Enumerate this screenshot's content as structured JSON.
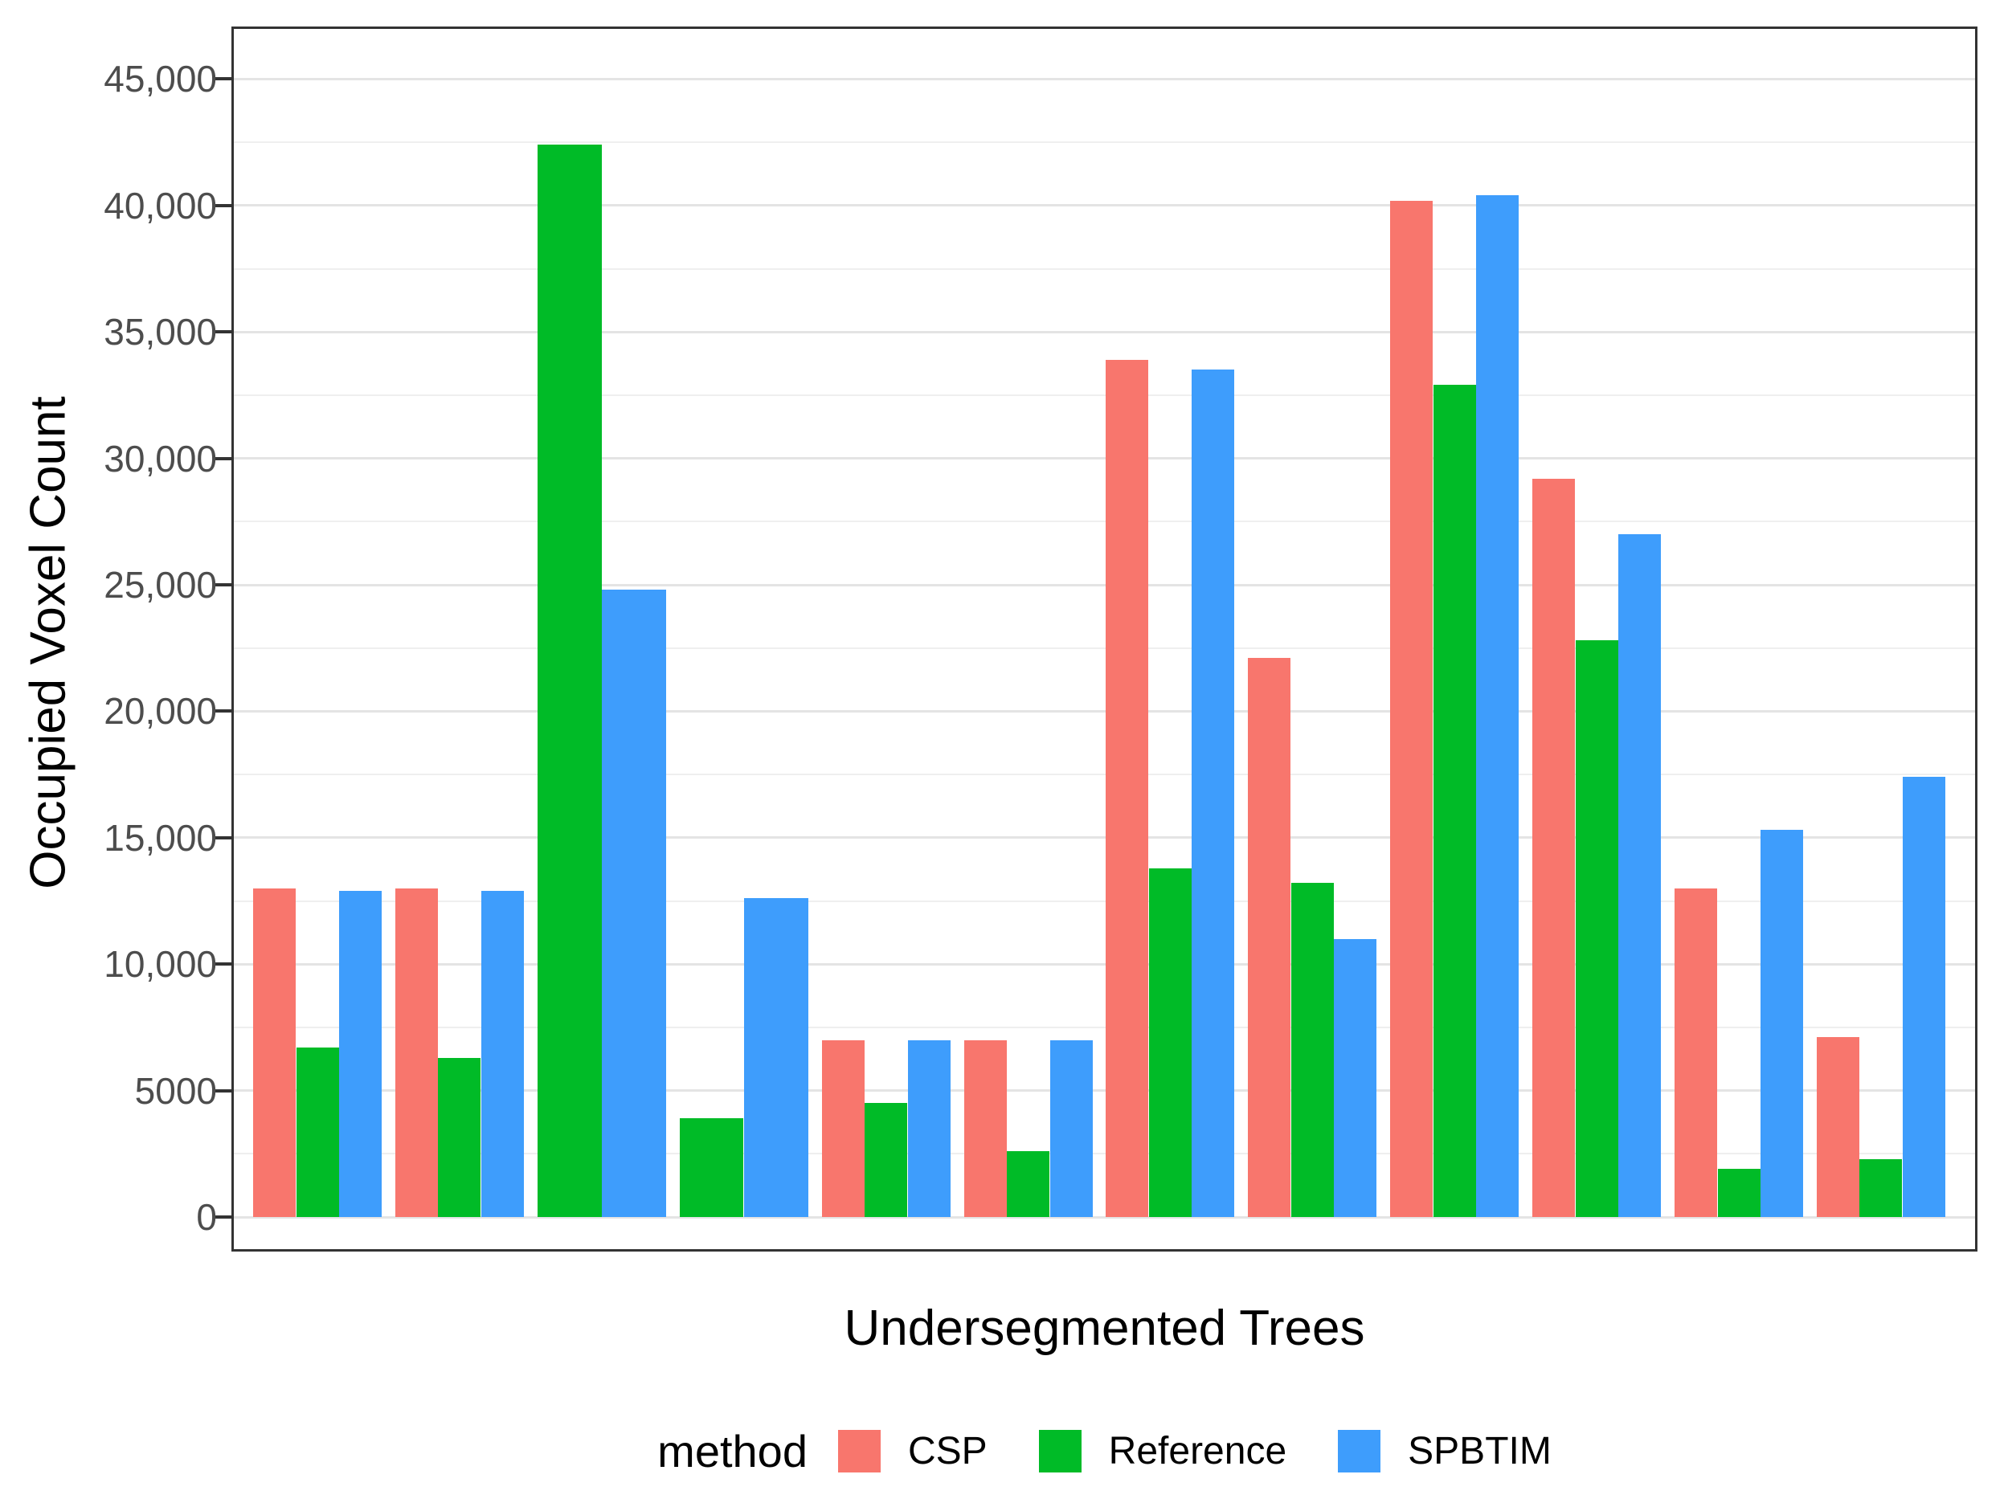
{
  "chart_data": {
    "type": "bar",
    "title": "",
    "xlabel": "Undersegmented Trees",
    "ylabel": "Occupied Voxel Count",
    "categories": [
      1,
      2,
      3,
      4,
      5,
      6,
      7,
      8,
      9,
      10,
      11,
      12
    ],
    "x_tick_labels_shown": false,
    "series": [
      {
        "name": "CSP",
        "color": "#F8766D",
        "values": [
          13000,
          13000,
          null,
          null,
          7000,
          7000,
          33900,
          22100,
          40200,
          29200,
          13000,
          7100
        ]
      },
      {
        "name": "Reference",
        "color": "#00BB27",
        "values": [
          6700,
          6300,
          42400,
          3900,
          4500,
          2600,
          13800,
          13200,
          32900,
          22800,
          1900,
          2300
        ]
      },
      {
        "name": "SPBTIM",
        "color": "#3E9DFC",
        "values": [
          12900,
          12900,
          24800,
          12600,
          7000,
          7000,
          33500,
          11000,
          40400,
          27000,
          15300,
          17400
        ]
      }
    ],
    "y_ticks": [
      {
        "value": 0,
        "label": "0"
      },
      {
        "value": 5000,
        "label": "5000"
      },
      {
        "value": 10000,
        "label": "10,000"
      },
      {
        "value": 15000,
        "label": "15,000"
      },
      {
        "value": 20000,
        "label": "20,000"
      },
      {
        "value": 25000,
        "label": "25,000"
      },
      {
        "value": 30000,
        "label": "30,000"
      },
      {
        "value": 35000,
        "label": "35,000"
      },
      {
        "value": 40000,
        "label": "40,000"
      },
      {
        "value": 45000,
        "label": "45,000"
      }
    ],
    "y_minor_ticks": [
      2500,
      7500,
      12500,
      17500,
      22500,
      27500,
      32500,
      37500,
      42500
    ],
    "ylim": [
      0,
      47100
    ],
    "grid": true,
    "legend": {
      "title": "method",
      "position": "bottom"
    }
  },
  "colors": {
    "background": "#FFFFFF",
    "panel_border": "#333333",
    "grid_major": "#E4E4E4",
    "grid_minor": "#EFEFEF",
    "axis_tick": "#333333",
    "tick_label": "#4D4D4D",
    "titles": "#000000"
  }
}
